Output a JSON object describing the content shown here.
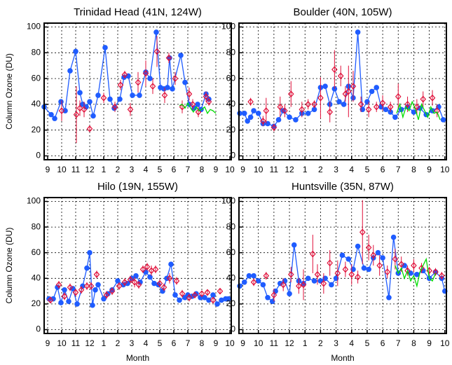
{
  "chart_data": [
    {
      "type": "line",
      "title": "Trinidad Head (41N, 124W)",
      "y_label": "Column Ozone (DU)",
      "xlim": [
        -0.25,
        13.1
      ],
      "ylim": [
        -3,
        103
      ],
      "xticks": [
        {
          "value": 0,
          "label": "9"
        },
        {
          "value": 1,
          "label": "10"
        },
        {
          "value": 2,
          "label": "11"
        },
        {
          "value": 3,
          "label": "12"
        },
        {
          "value": 4,
          "label": "1"
        },
        {
          "value": 5,
          "label": "2"
        },
        {
          "value": 6,
          "label": "3"
        },
        {
          "value": 7,
          "label": "4"
        },
        {
          "value": 8,
          "label": "5"
        },
        {
          "value": 9,
          "label": "6"
        },
        {
          "value": 10,
          "label": "7"
        },
        {
          "value": 11,
          "label": "8"
        },
        {
          "value": 12,
          "label": "9"
        },
        {
          "value": 13,
          "label": "10"
        }
      ],
      "yticks": [
        0,
        20,
        40,
        60,
        80,
        100
      ],
      "grid": true,
      "series": [
        {
          "color": "#1f5cff",
          "marker": "circle",
          "line": true,
          "x": [
            -0.25,
            0.25,
            0.5,
            0.95,
            1.25,
            1.6,
            2.0,
            2.3,
            2.5,
            2.75,
            3.0,
            3.25,
            3.6,
            4.1,
            4.45,
            4.75,
            5.15,
            5.45,
            5.75,
            6.05,
            6.55,
            7.0,
            7.3,
            7.75,
            8.05,
            8.3,
            8.55,
            8.7,
            8.9,
            9.5,
            9.8,
            10.1,
            10.45,
            10.7,
            10.95,
            11.3,
            11.5
          ],
          "values": [
            38,
            32,
            29,
            42,
            35,
            66,
            81,
            49,
            40,
            38,
            42,
            31,
            47,
            84,
            44,
            37,
            44,
            61,
            62,
            47,
            47,
            65,
            60,
            96,
            53,
            52,
            53,
            76,
            52,
            78,
            57,
            40,
            37,
            40,
            36,
            48,
            44
          ]
        },
        {
          "color": "#e0103a",
          "marker": "diamond",
          "line": false,
          "x": [
            1.0,
            2.05,
            2.3,
            2.6,
            3.0,
            4.0,
            4.8,
            5.2,
            5.5,
            5.9,
            6.45,
            7.0,
            7.5,
            7.8,
            8.35,
            8.65,
            9.1,
            9.6,
            10.1,
            10.35,
            10.75,
            11.3,
            11.5
          ],
          "values": [
            35,
            32,
            37,
            36,
            21,
            45,
            38,
            55,
            63,
            36,
            57,
            64,
            54,
            81,
            47,
            76,
            60,
            38,
            48,
            40,
            34,
            46,
            42
          ],
          "errors": [
            8,
            22,
            6,
            6,
            2,
            4,
            4,
            4,
            3,
            5,
            8,
            10,
            6,
            12,
            6,
            4,
            5,
            5,
            5,
            4,
            4,
            4,
            3
          ]
        },
        {
          "color": "#00dd00",
          "marker": "none",
          "line": true,
          "x": [
            9.4,
            9.6,
            9.8,
            10.0,
            10.2,
            10.4,
            10.6,
            10.8,
            11.0,
            11.2,
            11.4,
            11.6,
            11.8,
            12.0
          ],
          "values": [
            39,
            40,
            37,
            41,
            37,
            34,
            38,
            35,
            36,
            38,
            33,
            36,
            35,
            33
          ]
        }
      ]
    },
    {
      "type": "line",
      "title": "Boulder (40N, 105W)",
      "xlim": [
        -0.25,
        13.1
      ],
      "ylim": [
        -3,
        103
      ],
      "xticks": [
        {
          "value": 0,
          "label": "9"
        },
        {
          "value": 1,
          "label": "10"
        },
        {
          "value": 2,
          "label": "11"
        },
        {
          "value": 3,
          "label": "12"
        },
        {
          "value": 4,
          "label": "1"
        },
        {
          "value": 5,
          "label": "2"
        },
        {
          "value": 6,
          "label": "3"
        },
        {
          "value": 7,
          "label": "4"
        },
        {
          "value": 8,
          "label": "5"
        },
        {
          "value": 9,
          "label": "6"
        },
        {
          "value": 10,
          "label": "7"
        },
        {
          "value": 11,
          "label": "8"
        },
        {
          "value": 12,
          "label": "9"
        },
        {
          "value": 13,
          "label": "10"
        }
      ],
      "yticks": [
        0,
        20,
        40,
        60,
        80,
        100
      ],
      "grid": true,
      "series": [
        {
          "color": "#1f5cff",
          "marker": "circle",
          "line": true,
          "x": [
            -0.2,
            0.1,
            0.3,
            0.5,
            0.7,
            1.0,
            1.3,
            1.6,
            2.0,
            2.3,
            2.6,
            3.0,
            3.4,
            3.8,
            4.2,
            4.6,
            5.0,
            5.3,
            5.6,
            5.9,
            6.2,
            6.5,
            6.8,
            7.1,
            7.4,
            7.7,
            8.0,
            8.3,
            8.6,
            8.9,
            9.2,
            9.5,
            9.8,
            10.2,
            10.6,
            11.0,
            11.4,
            11.8,
            12.2,
            12.6,
            12.9
          ],
          "values": [
            33,
            33,
            27,
            30,
            35,
            33,
            25,
            25,
            23,
            28,
            35,
            30,
            28,
            33,
            33,
            36,
            53,
            54,
            40,
            52,
            42,
            40,
            54,
            45,
            96,
            36,
            42,
            50,
            53,
            38,
            36,
            34,
            30,
            36,
            38,
            34,
            37,
            32,
            35,
            38,
            28
          ]
        },
        {
          "color": "#e0103a",
          "marker": "diamond",
          "line": false,
          "x": [
            0.5,
            1.3,
            1.5,
            2.0,
            2.4,
            2.7,
            3.1,
            3.8,
            4.2,
            4.6,
            5.0,
            5.6,
            5.9,
            6.3,
            6.6,
            6.8,
            7.1,
            7.6,
            8.1,
            8.6,
            9.0,
            9.5,
            10.0,
            10.6,
            11.2,
            11.6,
            12.2,
            12.5
          ],
          "values": [
            42,
            27,
            35,
            22,
            38,
            35,
            48,
            36,
            40,
            40,
            45,
            34,
            67,
            62,
            48,
            50,
            54,
            40,
            36,
            38,
            41,
            38,
            46,
            40,
            38,
            44,
            45,
            35
          ],
          "errors": [
            3,
            4,
            10,
            3,
            8,
            5,
            10,
            6,
            4,
            3,
            16,
            8,
            15,
            8,
            6,
            20,
            12,
            6,
            6,
            4,
            6,
            4,
            10,
            6,
            6,
            6,
            6,
            5
          ]
        },
        {
          "color": "#00dd00",
          "marker": "none",
          "line": true,
          "x": [
            9.9,
            10.1,
            10.3,
            10.5,
            10.7,
            10.9,
            11.1,
            11.3,
            11.5,
            11.7,
            11.9,
            12.1,
            12.3,
            12.5,
            12.7
          ],
          "values": [
            33,
            40,
            30,
            38,
            35,
            42,
            36,
            28,
            40,
            35,
            30,
            38,
            33,
            34,
            28
          ]
        }
      ]
    },
    {
      "type": "line",
      "title": "Hilo (19N, 155W)",
      "y_label": "Column Ozone (DU)",
      "x_label": "Month",
      "xlim": [
        -0.25,
        13.1
      ],
      "ylim": [
        -3,
        103
      ],
      "xticks": [
        {
          "value": 0,
          "label": "9"
        },
        {
          "value": 1,
          "label": "10"
        },
        {
          "value": 2,
          "label": "11"
        },
        {
          "value": 3,
          "label": "12"
        },
        {
          "value": 4,
          "label": "1"
        },
        {
          "value": 5,
          "label": "2"
        },
        {
          "value": 6,
          "label": "3"
        },
        {
          "value": 7,
          "label": "4"
        },
        {
          "value": 8,
          "label": "5"
        },
        {
          "value": 9,
          "label": "6"
        },
        {
          "value": 10,
          "label": "7"
        },
        {
          "value": 11,
          "label": "8"
        },
        {
          "value": 12,
          "label": "9"
        },
        {
          "value": 13,
          "label": "10"
        }
      ],
      "yticks": [
        0,
        20,
        40,
        60,
        80,
        100
      ],
      "grid": true,
      "series": [
        {
          "color": "#1f5cff",
          "marker": "circle",
          "line": true,
          "x": [
            0.1,
            0.4,
            0.7,
            0.95,
            1.2,
            1.5,
            1.8,
            2.1,
            2.5,
            2.8,
            3.0,
            3.2,
            3.4,
            3.6,
            4.0,
            4.3,
            4.6,
            5.0,
            5.4,
            5.7,
            6.0,
            6.3,
            6.6,
            7.0,
            7.3,
            7.6,
            7.9,
            8.2,
            8.5,
            8.8,
            9.1,
            9.4,
            9.8,
            10.0,
            10.3,
            10.6,
            10.9,
            11.2,
            11.5,
            11.8,
            12.1,
            12.4,
            12.7,
            12.9
          ],
          "values": [
            24,
            24,
            33,
            21,
            31,
            22,
            32,
            20,
            34,
            48,
            60,
            19,
            31,
            35,
            24,
            28,
            31,
            38,
            35,
            36,
            40,
            42,
            37,
            45,
            41,
            36,
            35,
            30,
            40,
            51,
            27,
            23,
            25,
            27,
            26,
            28,
            25,
            25,
            23,
            27,
            20,
            23,
            24,
            24
          ]
        },
        {
          "color": "#e0103a",
          "marker": "diamond",
          "line": false,
          "x": [
            0.2,
            0.8,
            1.2,
            1.6,
            2.0,
            2.4,
            2.8,
            3.1,
            3.5,
            4.2,
            4.6,
            5.1,
            5.5,
            5.9,
            6.2,
            6.5,
            6.8,
            7.1,
            7.4,
            7.7,
            8.0,
            8.3,
            8.7,
            9.2,
            9.6,
            10.1,
            10.5,
            11.0,
            11.4,
            11.8,
            12.3
          ],
          "values": [
            23,
            35,
            26,
            33,
            29,
            31,
            34,
            34,
            43,
            27,
            30,
            34,
            37,
            39,
            37,
            35,
            47,
            49,
            46,
            47,
            36,
            33,
            40,
            38,
            28,
            25,
            27,
            28,
            29,
            23,
            30
          ],
          "errors": [
            2,
            3,
            3,
            3,
            3,
            3,
            3,
            3,
            3,
            3,
            3,
            3,
            3,
            3,
            4,
            3,
            3,
            3,
            4,
            3,
            3,
            3,
            4,
            3,
            3,
            3,
            2,
            2,
            2,
            2,
            2
          ]
        }
      ]
    },
    {
      "type": "line",
      "title": "Huntsville (35N, 87W)",
      "x_label": "Month",
      "xlim": [
        -0.25,
        13.1
      ],
      "ylim": [
        -3,
        103
      ],
      "xticks": [
        {
          "value": 0,
          "label": "9"
        },
        {
          "value": 1,
          "label": "10"
        },
        {
          "value": 2,
          "label": "11"
        },
        {
          "value": 3,
          "label": "12"
        },
        {
          "value": 4,
          "label": "1"
        },
        {
          "value": 5,
          "label": "2"
        },
        {
          "value": 6,
          "label": "3"
        },
        {
          "value": 7,
          "label": "4"
        },
        {
          "value": 8,
          "label": "5"
        },
        {
          "value": 9,
          "label": "6"
        },
        {
          "value": 10,
          "label": "7"
        },
        {
          "value": 11,
          "label": "8"
        },
        {
          "value": 12,
          "label": "9"
        },
        {
          "value": 13,
          "label": "10"
        }
      ],
      "yticks": [
        0,
        20,
        40,
        60,
        80,
        100
      ],
      "grid": true,
      "series": [
        {
          "color": "#1f5cff",
          "marker": "circle",
          "line": true,
          "x": [
            -0.2,
            0.1,
            0.4,
            0.7,
            1.0,
            1.3,
            1.6,
            1.9,
            2.1,
            2.4,
            2.7,
            3.0,
            3.3,
            3.6,
            3.9,
            4.2,
            4.6,
            5.0,
            5.3,
            5.7,
            6.0,
            6.4,
            6.8,
            7.1,
            7.4,
            7.8,
            8.1,
            8.4,
            8.7,
            9.0,
            9.4,
            9.7,
            10.0,
            10.4,
            10.8,
            11.2,
            11.6,
            12.0,
            12.4,
            12.8,
            13.0
          ],
          "values": [
            34,
            37,
            42,
            42,
            38,
            35,
            25,
            22,
            30,
            36,
            38,
            28,
            66,
            38,
            36,
            40,
            38,
            38,
            40,
            35,
            40,
            58,
            55,
            47,
            65,
            48,
            47,
            56,
            60,
            56,
            25,
            72,
            44,
            50,
            44,
            43,
            46,
            40,
            45,
            40,
            30
          ]
        },
        {
          "color": "#e0103a",
          "marker": "diamond",
          "line": false,
          "x": [
            0.7,
            1.5,
            2.0,
            2.6,
            3.1,
            3.6,
            3.9,
            4.5,
            4.8,
            5.2,
            5.6,
            6.1,
            6.6,
            7.0,
            7.4,
            7.7,
            8.1,
            8.4,
            8.8,
            9.3,
            9.8,
            10.2,
            10.6,
            11.0,
            11.5,
            12.0,
            12.4,
            12.8
          ],
          "values": [
            37,
            42,
            27,
            35,
            43,
            34,
            35,
            59,
            43,
            36,
            52,
            44,
            47,
            43,
            41,
            76,
            64,
            58,
            50,
            45,
            55,
            51,
            46,
            50,
            48,
            46,
            45,
            42
          ],
          "errors": [
            3,
            3,
            5,
            5,
            6,
            6,
            12,
            15,
            8,
            8,
            10,
            10,
            6,
            8,
            5,
            25,
            10,
            8,
            8,
            5,
            8,
            6,
            4,
            5,
            4,
            3,
            3,
            3
          ]
        },
        {
          "color": "#00dd00",
          "marker": "none",
          "line": true,
          "x": [
            9.8,
            10.0,
            10.2,
            10.4,
            10.6,
            10.8,
            11.0,
            11.2,
            11.4,
            11.6,
            11.8,
            12.0,
            12.2,
            12.4
          ],
          "values": [
            50,
            44,
            48,
            40,
            46,
            38,
            42,
            34,
            45,
            50,
            55,
            40,
            38,
            44
          ]
        }
      ]
    }
  ]
}
